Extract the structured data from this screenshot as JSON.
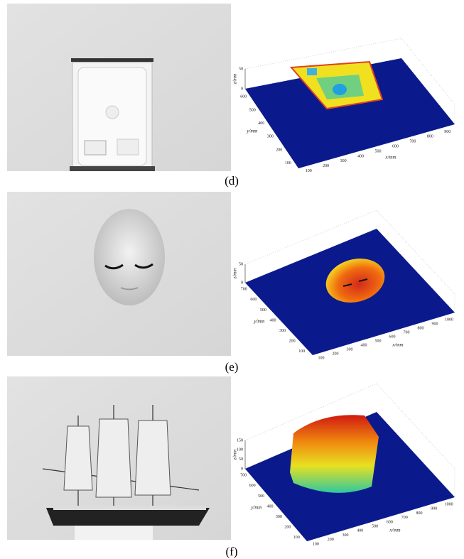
{
  "panels": [
    {
      "label": "(d)",
      "plot": {
        "z_label": "z/mm",
        "y_label": "y/mm",
        "x_label": "x/mm",
        "z_ticks": [
          50,
          0
        ],
        "y_ticks": [
          600,
          500,
          400,
          300,
          200,
          100
        ],
        "x_ticks": [
          100,
          200,
          300,
          400,
          500,
          600,
          700,
          800,
          900
        ]
      }
    },
    {
      "label": "(e)",
      "plot": {
        "z_label": "z/mm",
        "y_label": "y/mm",
        "x_label": "x/mm",
        "z_ticks": [
          50,
          0
        ],
        "y_ticks": [
          700,
          600,
          500,
          400,
          300,
          200,
          100
        ],
        "x_ticks": [
          100,
          200,
          300,
          400,
          500,
          600,
          700,
          800,
          900,
          1000
        ]
      }
    },
    {
      "label": "(f)",
      "plot": {
        "z_label": "z/mm",
        "y_label": "y/mm",
        "x_label": "x/mm",
        "z_ticks": [
          150,
          100,
          50,
          0
        ],
        "y_ticks": [
          700,
          600,
          500,
          400,
          300,
          200,
          100
        ],
        "x_ticks": [
          100,
          200,
          300,
          400,
          500,
          600,
          700,
          800,
          900,
          1000
        ]
      }
    }
  ]
}
